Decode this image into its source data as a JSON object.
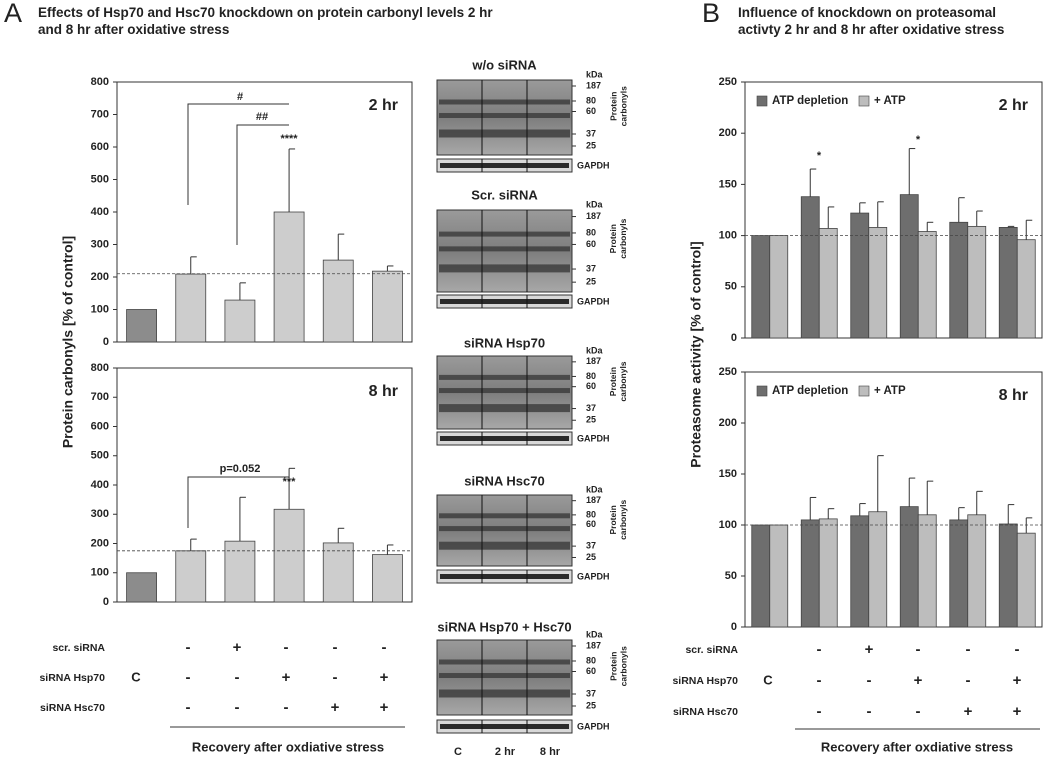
{
  "panel_a": {
    "label": "A",
    "title": "Effects of Hsp70 and Hsc70 knockdown on protein carbonyl levels 2 hr and 8 hr after oxidative stress"
  },
  "panel_b": {
    "label": "B",
    "title": "Influence of knockdown on proteasomal activty 2 hr and 8 hr after oxidative stress"
  },
  "chart_data": [
    {
      "type": "bar",
      "panel_label": "2 hr",
      "ylabel": "Protein carbonyls [% of control]",
      "values": [
        100,
        209,
        129,
        400,
        252,
        218
      ],
      "errors": [
        null,
        53,
        53,
        194,
        80,
        16
      ],
      "colors": [
        "#8c8c8c",
        "#cdcdcd",
        "#cdcdcd",
        "#cdcdcd",
        "#cdcdcd",
        "#cdcdcd"
      ],
      "ylim": [
        0,
        800
      ],
      "yticks": [
        0,
        100,
        200,
        300,
        400,
        500,
        600,
        700,
        800
      ],
      "reference_line": 210,
      "annotations": [
        "#",
        "##",
        "****"
      ]
    },
    {
      "type": "bar",
      "panel_label": "8 hr",
      "values": [
        100,
        175,
        208,
        317,
        202,
        162
      ],
      "errors": [
        null,
        40,
        150,
        140,
        50,
        33
      ],
      "colors": [
        "#8c8c8c",
        "#cdcdcd",
        "#cdcdcd",
        "#cdcdcd",
        "#cdcdcd",
        "#cdcdcd"
      ],
      "ylim": [
        0,
        800
      ],
      "yticks": [
        0,
        100,
        200,
        300,
        400,
        500,
        600,
        700,
        800
      ],
      "reference_line": 175,
      "annotations": [
        "p=0.052",
        "***"
      ]
    },
    {
      "type": "grouped_bar",
      "panel_label": "2 hr",
      "ylabel": "Proteasome activity [% of control]",
      "series": [
        {
          "name": "ATP depletion",
          "color": "#6e6e6e",
          "values": [
            100,
            138,
            122,
            140,
            113,
            108
          ],
          "errors": [
            null,
            27,
            10,
            45,
            24,
            1
          ]
        },
        {
          "name": "+ ATP",
          "color": "#bdbdbd",
          "values": [
            100,
            107,
            108,
            104,
            109,
            96
          ],
          "errors": [
            null,
            21,
            25,
            9,
            15,
            19
          ]
        }
      ],
      "ylim": [
        0,
        250
      ],
      "yticks": [
        0,
        50,
        100,
        150,
        200,
        250
      ],
      "reference_line": 100,
      "annotations": [
        "*",
        "*"
      ]
    },
    {
      "type": "grouped_bar",
      "panel_label": "8 hr",
      "series": [
        {
          "name": "ATP depletion",
          "color": "#6e6e6e",
          "values": [
            100,
            105,
            109,
            118,
            105,
            101
          ],
          "errors": [
            null,
            22,
            12,
            28,
            12,
            19
          ]
        },
        {
          "name": "+ ATP",
          "color": "#bdbdbd",
          "values": [
            100,
            106,
            113,
            110,
            110,
            92
          ],
          "errors": [
            null,
            10,
            55,
            33,
            23,
            15
          ]
        }
      ],
      "ylim": [
        0,
        250
      ],
      "yticks": [
        0,
        50,
        100,
        150,
        200,
        250
      ],
      "reference_line": 100
    }
  ],
  "conditions": {
    "control": "C",
    "rows": [
      {
        "label": "scr. siRNA",
        "marks": [
          "-",
          "+",
          "-",
          "-",
          "-"
        ]
      },
      {
        "label": "siRNA Hsp70",
        "marks": [
          "-",
          "-",
          "+",
          "-",
          "+"
        ]
      },
      {
        "label": "siRNA Hsc70",
        "marks": [
          "-",
          "-",
          "-",
          "+",
          "+"
        ]
      }
    ],
    "footer": "Recovery after oxdiative stress"
  },
  "blots": {
    "titles": [
      "w/o siRNA",
      "Scr. siRNA",
      "siRNA Hsp70",
      "siRNA Hsc70",
      "siRNA Hsp70 + Hsc70"
    ],
    "kda_label": "kDa",
    "markers": [
      "187",
      "80",
      "60",
      "37",
      "25"
    ],
    "side_label": [
      "Protein",
      "carbonyls"
    ],
    "loading_control": "GAPDH",
    "lanes": [
      "C",
      "2 hr",
      "8 hr"
    ]
  }
}
